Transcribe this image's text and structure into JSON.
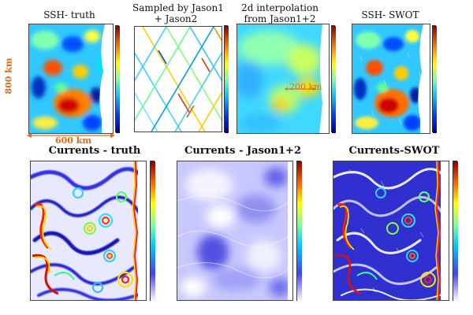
{
  "top_row": {
    "p1": {
      "title": "SSH- truth"
    },
    "p2": {
      "title_line1": "Sampled by Jason1",
      "title_line2": "+ Jason2"
    },
    "p3": {
      "title_line1": "2d interpolation",
      "title_line2": "from Jason1+2",
      "annotation": "200 km"
    },
    "p4": {
      "title": "SSH- SWOT"
    }
  },
  "bottom_row": {
    "p1": {
      "title": "Currents - truth"
    },
    "p2": {
      "title": "Currents - Jason1+2"
    },
    "p3": {
      "title": "Currents-SWOT"
    }
  },
  "annotations": {
    "height_label": "800 km",
    "width_label": "600 km",
    "color": "#e06a18"
  },
  "colorscale": [
    "#00008b",
    "#0050ff",
    "#00c8ff",
    "#7fffa0",
    "#ffff00",
    "#ff8000",
    "#d00000",
    "#6a0000"
  ]
}
